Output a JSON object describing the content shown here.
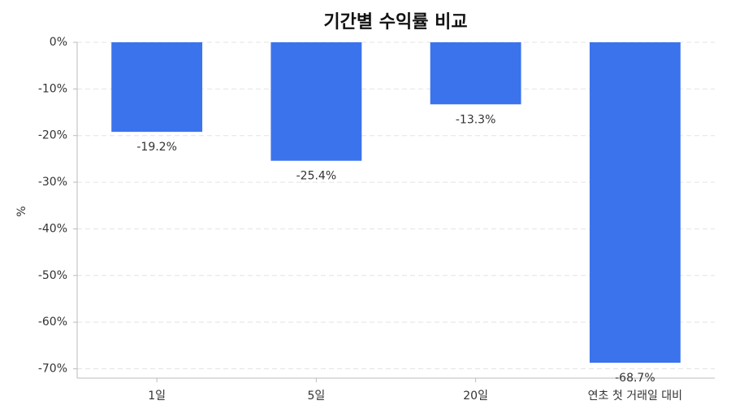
{
  "chart_data": {
    "type": "bar",
    "title": "기간별 수익률 비교",
    "y_label": "%",
    "categories": [
      "1일",
      "5일",
      "20일",
      "연초 첫 거래일 대비"
    ],
    "values": [
      -19.2,
      -25.4,
      -13.3,
      -68.7
    ],
    "value_labels": [
      "-19.2%",
      "-25.4%",
      "-13.3%",
      "-68.7%"
    ],
    "color": "#3b73ec",
    "ylim": [
      -72,
      0
    ],
    "yticks": [
      {
        "value": 0,
        "label": "0%"
      },
      {
        "value": -10,
        "label": "-10%"
      },
      {
        "value": -20,
        "label": "-20%"
      },
      {
        "value": -30,
        "label": "-30%"
      },
      {
        "value": -40,
        "label": "-40%"
      },
      {
        "value": -50,
        "label": "-50%"
      },
      {
        "value": -60,
        "label": "-60%"
      },
      {
        "value": -70,
        "label": "-70%"
      }
    ],
    "grid": true
  }
}
